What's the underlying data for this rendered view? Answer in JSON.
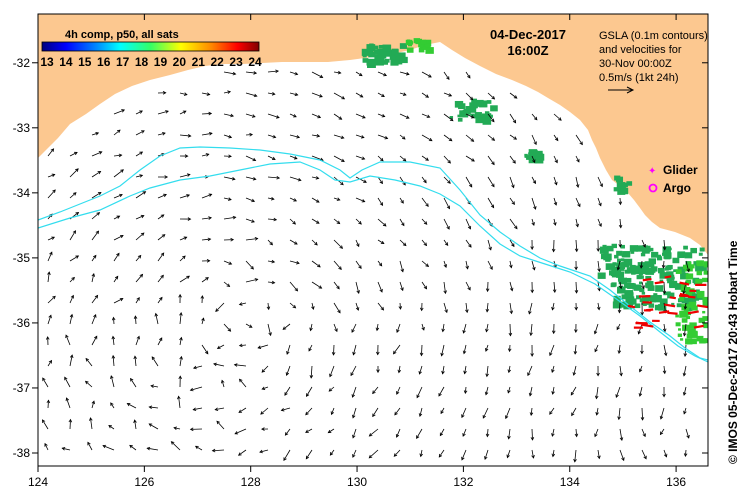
{
  "map": {
    "date_line": "04-Dec-2017",
    "time_line": "16:00Z",
    "colorbar": {
      "title": "4h comp, p50, all sats",
      "labels": [
        "13",
        "14",
        "15",
        "16",
        "17",
        "18",
        "19",
        "20",
        "21",
        "22",
        "23",
        "24"
      ],
      "min": 13,
      "max": 24
    },
    "gsla_legend": {
      "line1": "GSLA (0.1m contours)",
      "line2": "and velocities for",
      "line3": "30-Nov 00:00Z",
      "line4": "0.5m/s (1kt 24h)"
    },
    "markers": {
      "glider_label": "Glider",
      "argo_label": "Argo",
      "glider_color": "#ff00ff",
      "argo_color": "#ff00ff"
    },
    "credit": "© IMOS 05-Dec-2017 20:43 Hobart Time",
    "axes": {
      "lon_ticks": [
        124,
        126,
        128,
        130,
        132,
        134,
        136
      ],
      "lat_ticks": [
        -32,
        -33,
        -34,
        -35,
        -36,
        -37,
        -38
      ],
      "lon_range": [
        124,
        136.6
      ],
      "lat_range": [
        -38.2,
        -31.25
      ]
    },
    "colors": {
      "land": "#fcc890",
      "sst_warm": "#22aa55",
      "sst_bright": "#33cc33",
      "contour": "#33ddee",
      "glider_track": "#ee0000",
      "arrow": "#000000"
    }
  }
}
